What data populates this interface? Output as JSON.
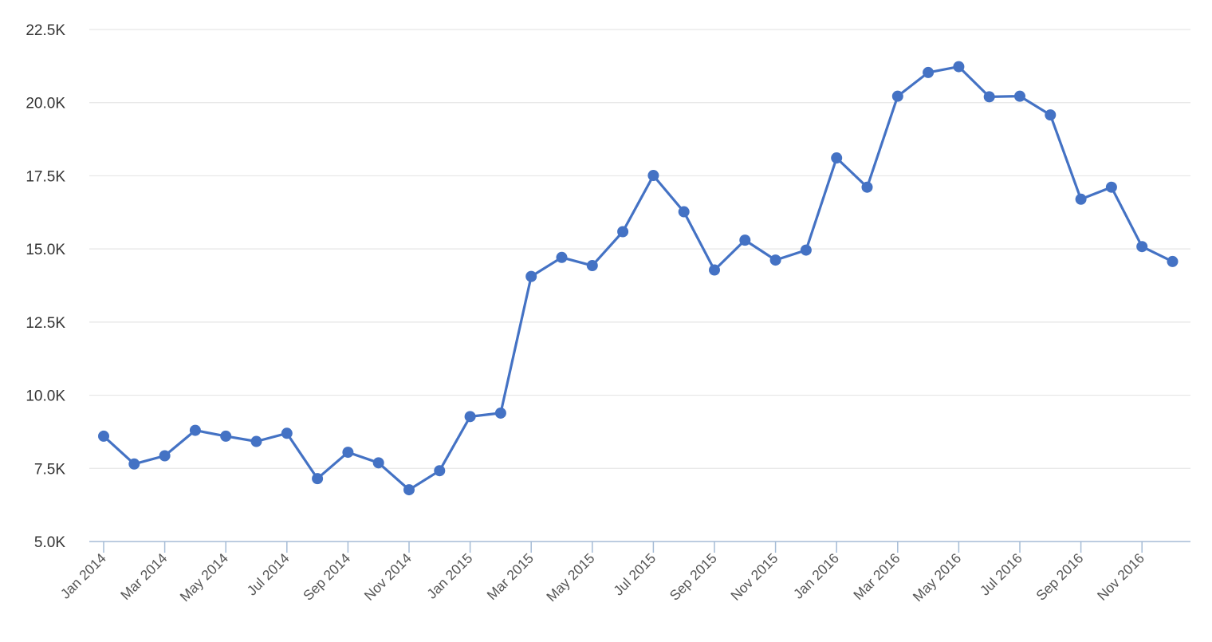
{
  "chart_data": {
    "type": "line",
    "title": "",
    "xlabel": "",
    "ylabel": "",
    "ylim": [
      5000,
      22500
    ],
    "y_ticks": [
      "5.0K",
      "7.5K",
      "10.0K",
      "12.5K",
      "15.0K",
      "17.5K",
      "20.0K",
      "22.5K"
    ],
    "x_tick_labels": [
      "Jan 2014",
      "Mar 2014",
      "May 2014",
      "Jul 2014",
      "Sep 2014",
      "Nov 2014",
      "Jan 2015",
      "Mar 2015",
      "May 2015",
      "Jul 2015",
      "Sep 2015",
      "Nov 2015",
      "Jan 2016",
      "Mar 2016",
      "May 2016",
      "Jul 2016",
      "Sep 2016",
      "Nov 2016"
    ],
    "grid": true,
    "legend": "none",
    "colors": {
      "line": "#4472c4",
      "grid": "#e6e6e6",
      "axis": "#a6bcd6"
    },
    "categories": [
      "Jan 2014",
      "Feb 2014",
      "Mar 2014",
      "Apr 2014",
      "May 2014",
      "Jun 2014",
      "Jul 2014",
      "Aug 2014",
      "Sep 2014",
      "Oct 2014",
      "Nov 2014",
      "Dec 2014",
      "Jan 2015",
      "Feb 2015",
      "Mar 2015",
      "Apr 2015",
      "May 2015",
      "Jun 2015",
      "Jul 2015",
      "Aug 2015",
      "Sep 2015",
      "Oct 2015",
      "Nov 2015",
      "Dec 2015",
      "Jan 2016",
      "Feb 2016",
      "Mar 2016",
      "Apr 2016",
      "May 2016",
      "Jun 2016",
      "Jul 2016",
      "Aug 2016",
      "Sep 2016",
      "Oct 2016",
      "Nov 2016",
      "Dec 2016"
    ],
    "series": [
      {
        "values": [
          8600,
          7650,
          7930,
          8800,
          8600,
          8420,
          8700,
          7150,
          8050,
          7690,
          6770,
          7420,
          9270,
          9390,
          14060,
          14710,
          14430,
          15590,
          17510,
          16270,
          14280,
          15300,
          14620,
          14960,
          18110,
          17110,
          20220,
          21030,
          21230,
          20200,
          20220,
          19580,
          16700,
          17110,
          15080,
          14570
        ]
      }
    ]
  }
}
